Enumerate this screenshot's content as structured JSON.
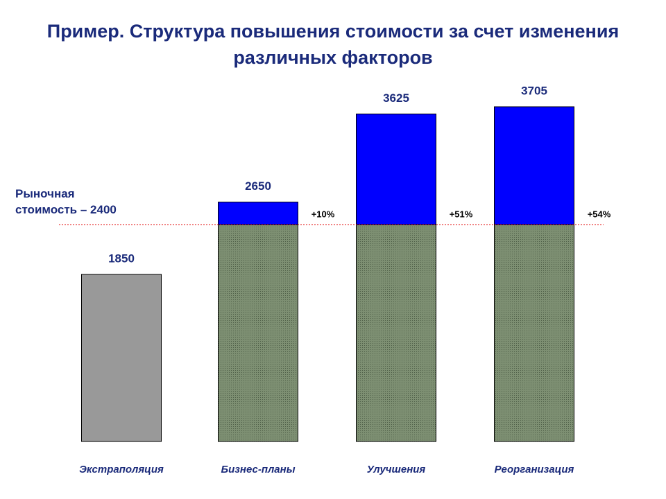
{
  "chart_data": {
    "type": "bar",
    "title": "Пример. Структура повышения стоимости за счет изменения различных факторов",
    "categories": [
      "Экстраполяция",
      "Бизнес-планы",
      "Улучшения",
      "Реорганизация"
    ],
    "values": [
      1850,
      2650,
      3625,
      3705
    ],
    "premium": {
      "values": [
        null,
        10,
        51,
        54
      ],
      "value_labels": [
        null,
        "+10%",
        "+51%",
        "+54%"
      ]
    },
    "reference": {
      "value": 2400,
      "label": "Рыночная стоимость – 2400",
      "color": "#e00000"
    },
    "color_below": "#999999",
    "color_base": "#7d8f72",
    "color_above": "#0000ff"
  }
}
